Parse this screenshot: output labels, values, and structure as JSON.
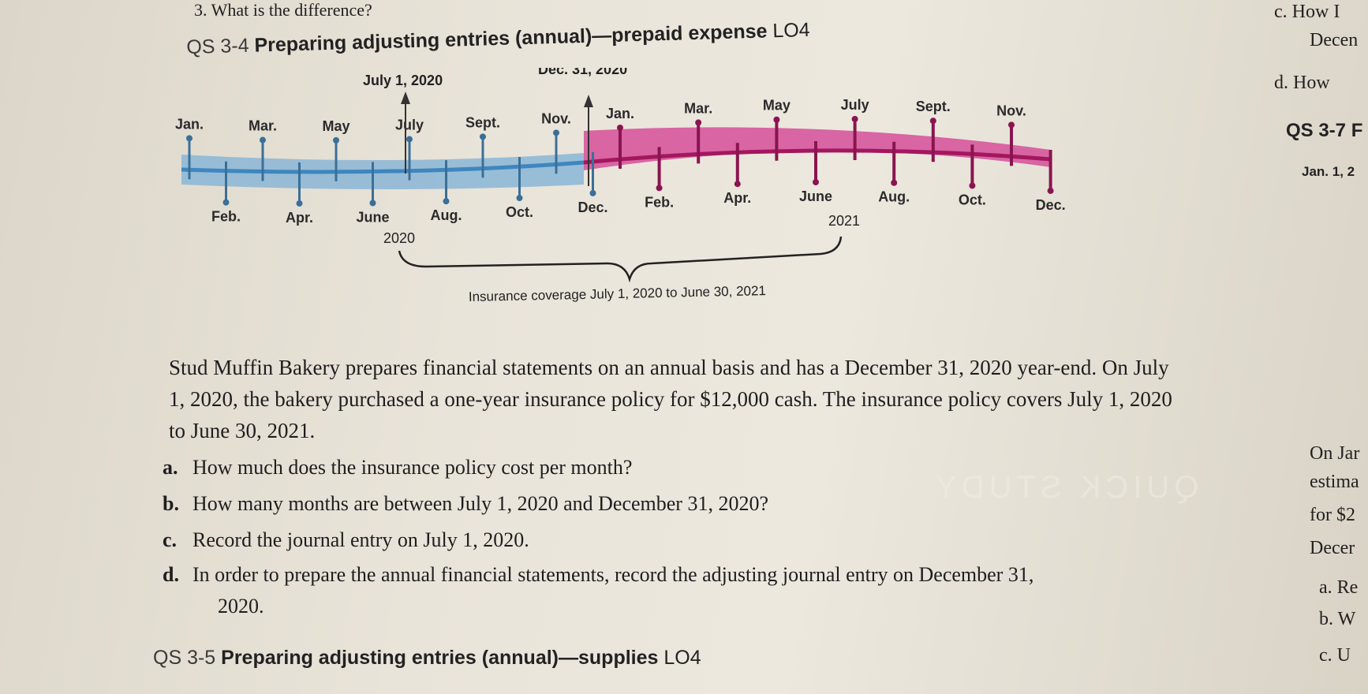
{
  "previous_question": "3. What is the difference?",
  "qs34": {
    "number": "QS 3-4",
    "title": "Preparing adjusting entries (annual)—prepaid expense",
    "lo": "LO4"
  },
  "timeline": {
    "top_date_left": "July 1, 2020",
    "top_date_right": "Dec. 31, 2020",
    "upper_months_2020": [
      "Jan.",
      "Mar.",
      "May",
      "July",
      "Sept.",
      "Nov."
    ],
    "lower_months_2020": [
      "Feb.",
      "Apr.",
      "June",
      "Aug.",
      "Oct.",
      "Dec."
    ],
    "upper_months_2021": [
      "Jan.",
      "Mar.",
      "May",
      "July",
      "Sept.",
      "Nov."
    ],
    "lower_months_2021": [
      "Feb.",
      "Apr.",
      "June",
      "Aug.",
      "Oct.",
      "Dec."
    ],
    "year_left": "2020",
    "year_right": "2021",
    "coverage_caption": "Insurance coverage July 1, 2020 to June 30, 2021",
    "colors": {
      "band_2020": "#8fb8d6",
      "line_2020": "#3e86bf",
      "band_2021": "#d4559a",
      "line_2021": "#a3175e"
    }
  },
  "problem": {
    "paragraph": "Stud Muffin Bakery prepares financial statements on an annual basis and has a December 31, 2020 year-end. On July 1, 2020, the bakery purchased a one-year insurance policy for $12,000 cash. The insurance policy covers July 1, 2020 to June 30, 2021.",
    "items": [
      {
        "letter": "a.",
        "text": "How much does the insurance policy cost per month?"
      },
      {
        "letter": "b.",
        "text": "How many months are between July 1, 2020 and December 31, 2020?"
      },
      {
        "letter": "c.",
        "text": "Record the journal entry on July 1, 2020."
      },
      {
        "letter": "d.",
        "text": "In order to prepare the annual financial statements, record the adjusting journal entry on December 31,"
      },
      {
        "letter": "",
        "text": "2020."
      }
    ]
  },
  "qs35": {
    "number": "QS 3-5",
    "title": "Preparing adjusting entries (annual)—supplies",
    "lo": "LO4"
  },
  "right_page_fragments": [
    "c. How I",
    "Decen",
    "d. How",
    "QS 3-7 F",
    "Jan. 1, 2",
    "On Jar",
    "estima",
    "for $2",
    "Decer",
    "a. Re",
    "b. W",
    "c. U"
  ],
  "ghost_text": "QUICK STUDY"
}
